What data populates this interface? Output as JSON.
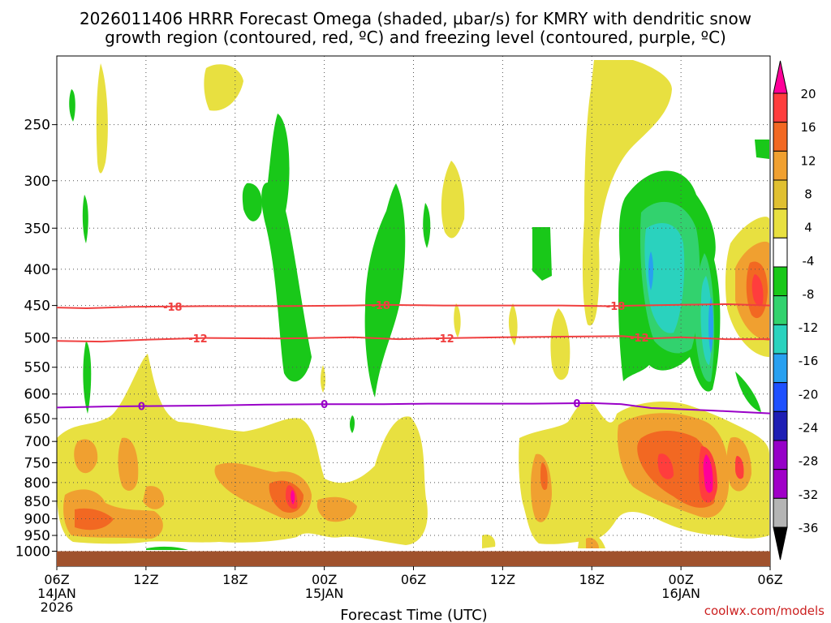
{
  "chart_data": {
    "type": "heatmap",
    "title_line1": "2026011406 HRRR Forecast Omega (shaded, µbar/s) for KMRY with dendritic snow",
    "title_line2": "growth region (contoured, red, ºC) and freezing level (contoured, purple, ºC)",
    "xlabel": "Forecast Time (UTC)",
    "ylabel": "",
    "credit": "coolwx.com/models",
    "x_range_hours": [
      0,
      48
    ],
    "y_range_hpa": [
      1050,
      200
    ],
    "x_ticks": [
      {
        "hour": 0,
        "label": "06Z",
        "sub1": "14JAN",
        "sub2": "2026"
      },
      {
        "hour": 6,
        "label": "12Z",
        "sub1": "",
        "sub2": ""
      },
      {
        "hour": 12,
        "label": "18Z",
        "sub1": "",
        "sub2": ""
      },
      {
        "hour": 18,
        "label": "00Z",
        "sub1": "15JAN",
        "sub2": ""
      },
      {
        "hour": 24,
        "label": "06Z",
        "sub1": "",
        "sub2": ""
      },
      {
        "hour": 30,
        "label": "12Z",
        "sub1": "",
        "sub2": ""
      },
      {
        "hour": 36,
        "label": "18Z",
        "sub1": "",
        "sub2": ""
      },
      {
        "hour": 42,
        "label": "00Z",
        "sub1": "16JAN",
        "sub2": ""
      },
      {
        "hour": 48,
        "label": "06Z",
        "sub1": "",
        "sub2": ""
      }
    ],
    "y_ticks": [
      "250",
      "300",
      "350",
      "400",
      "450",
      "500",
      "550",
      "600",
      "650",
      "700",
      "750",
      "800",
      "850",
      "900",
      "950",
      "1000"
    ],
    "colorbar": {
      "labels": [
        "20",
        "16",
        "12",
        "8",
        "4",
        "-4",
        "-8",
        "-12",
        "-16",
        "-20",
        "-24",
        "-28",
        "-32",
        "-36"
      ],
      "colors": [
        "#ff0099",
        "#ff3d3d",
        "#f26822",
        "#f0a030",
        "#e0c030",
        "#e8e040",
        "#ffffff",
        "#19c819",
        "#32d26e",
        "#2ad2be",
        "#28a0f0",
        "#1e50ff",
        "#1e1eb4",
        "#9600c8",
        "#a000c8",
        "#b4b4b4",
        "#000000"
      ]
    },
    "contours": [
      {
        "name": "dgz-minus18",
        "label": "-18",
        "color": "#f04040",
        "points": [
          [
            0,
            453
          ],
          [
            2,
            454
          ],
          [
            5,
            452
          ],
          [
            10,
            451
          ],
          [
            15,
            451
          ],
          [
            20,
            450
          ],
          [
            22,
            449
          ],
          [
            26,
            450
          ],
          [
            30,
            450
          ],
          [
            34,
            450
          ],
          [
            37,
            451
          ],
          [
            39,
            450
          ],
          [
            42,
            449
          ],
          [
            45,
            448
          ],
          [
            48,
            450
          ]
        ],
        "label_hours": [
          7.8,
          21.8,
          37.6
        ]
      },
      {
        "name": "dgz-minus12",
        "label": "-12",
        "color": "#f04040",
        "points": [
          [
            0,
            505
          ],
          [
            3,
            506
          ],
          [
            6,
            503
          ],
          [
            10,
            500
          ],
          [
            15,
            501
          ],
          [
            20,
            499
          ],
          [
            23,
            502
          ],
          [
            25,
            501
          ],
          [
            27,
            500
          ],
          [
            30,
            499
          ],
          [
            34,
            498
          ],
          [
            38,
            497
          ],
          [
            40,
            501
          ],
          [
            42,
            499
          ],
          [
            45,
            502
          ],
          [
            48,
            502
          ]
        ],
        "label_hours": [
          9.5,
          26.1,
          39.2
        ]
      },
      {
        "name": "freezing-level",
        "label": "0",
        "color": "#9900c8",
        "points": [
          [
            0,
            627
          ],
          [
            3,
            625
          ],
          [
            6,
            624
          ],
          [
            10,
            623
          ],
          [
            14,
            621
          ],
          [
            18,
            620
          ],
          [
            22,
            620
          ],
          [
            25,
            619
          ],
          [
            28,
            619
          ],
          [
            32,
            619
          ],
          [
            36,
            618
          ],
          [
            38,
            620
          ],
          [
            40,
            628
          ],
          [
            44,
            633
          ],
          [
            48,
            639
          ]
        ],
        "label_hours": [
          5.7,
          18.0,
          35.0
        ]
      }
    ],
    "ground_pressure_hpa": 1000
  }
}
